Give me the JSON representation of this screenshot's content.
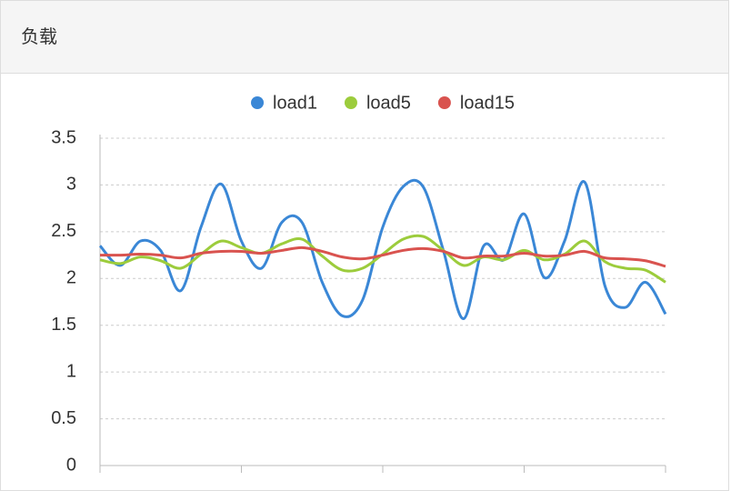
{
  "panel_title": "负载",
  "chart_data": {
    "type": "line",
    "categories": [
      null,
      null,
      null,
      null,
      null,
      null,
      null,
      null,
      null,
      null,
      null,
      null,
      null,
      null,
      null,
      null,
      null,
      null,
      null,
      null,
      null,
      null,
      null,
      null,
      null,
      null,
      null,
      null,
      null
    ],
    "series": [
      {
        "name": "load1",
        "color": "#3a87d6",
        "values": [
          2.35,
          2.14,
          2.4,
          2.3,
          1.87,
          2.55,
          3.01,
          2.4,
          2.11,
          2.6,
          2.6,
          1.96,
          1.6,
          1.77,
          2.55,
          2.98,
          2.98,
          2.3,
          1.57,
          2.35,
          2.2,
          2.69,
          2.01,
          2.4,
          3.03,
          1.92,
          1.69,
          1.96,
          1.62
        ]
      },
      {
        "name": "load5",
        "color": "#9ccc3c",
        "values": [
          2.2,
          2.16,
          2.23,
          2.19,
          2.11,
          2.26,
          2.4,
          2.33,
          2.27,
          2.37,
          2.42,
          2.24,
          2.09,
          2.11,
          2.26,
          2.42,
          2.45,
          2.3,
          2.14,
          2.23,
          2.2,
          2.3,
          2.2,
          2.26,
          2.4,
          2.18,
          2.11,
          2.09,
          1.96
        ]
      },
      {
        "name": "load15",
        "color": "#d9534f",
        "values": [
          2.25,
          2.25,
          2.26,
          2.25,
          2.22,
          2.27,
          2.29,
          2.29,
          2.27,
          2.3,
          2.33,
          2.29,
          2.23,
          2.21,
          2.25,
          2.3,
          2.32,
          2.29,
          2.22,
          2.24,
          2.24,
          2.27,
          2.24,
          2.25,
          2.29,
          2.22,
          2.21,
          2.19,
          2.13
        ]
      }
    ],
    "ylim": [
      0,
      3.5
    ],
    "yticks": [
      0,
      0.5,
      1,
      1.5,
      2,
      2.5,
      3,
      3.5
    ],
    "grid": true
  }
}
